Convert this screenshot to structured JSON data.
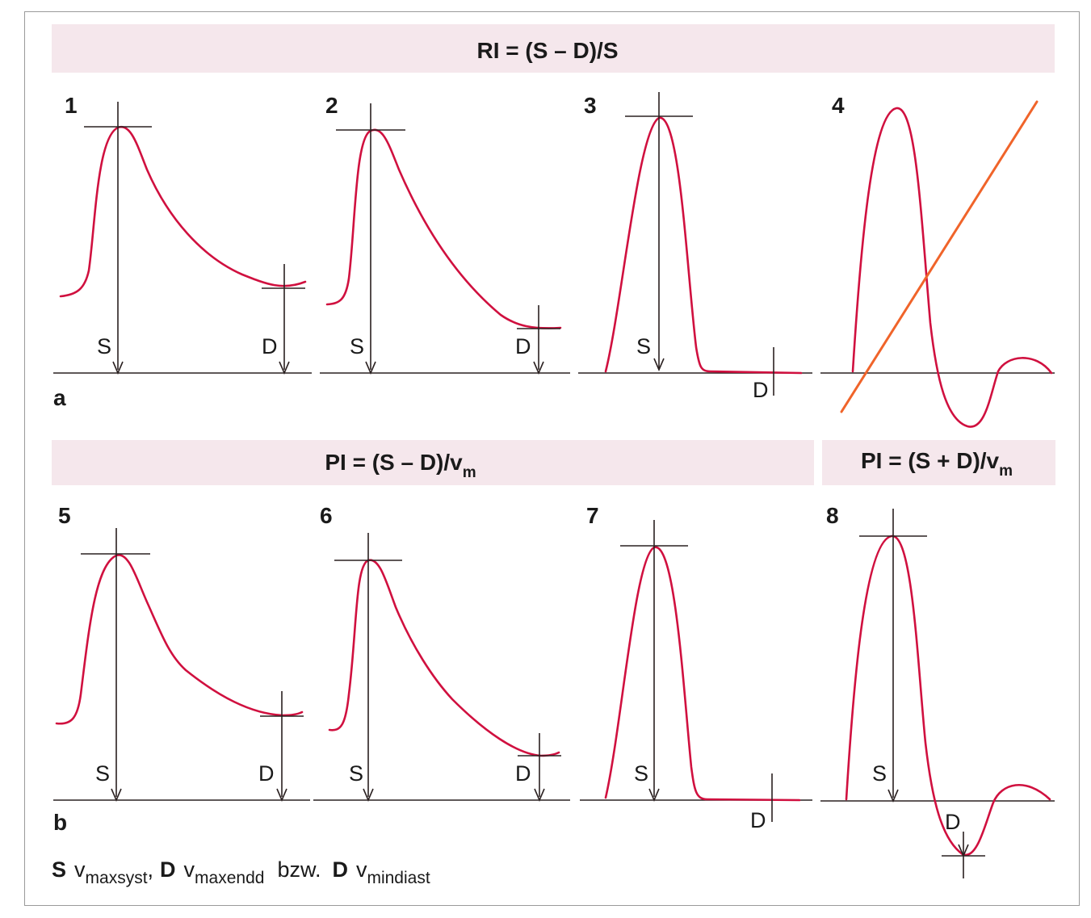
{
  "formulas": {
    "ri": {
      "prefix": "RI = (S – D)/S"
    },
    "pi_diff": {
      "prefix": "PI = (S – D)/v",
      "sub": "m"
    },
    "pi_sum": {
      "prefix": "PI = (S + D)/v",
      "sub": "m"
    }
  },
  "row_labels": {
    "a": "a",
    "b": "b"
  },
  "panels": [
    {
      "number": "1",
      "s_label": "S",
      "d_label": "D"
    },
    {
      "number": "2",
      "s_label": "S",
      "d_label": "D"
    },
    {
      "number": "3",
      "s_label": "S",
      "d_label": "D"
    },
    {
      "number": "4"
    },
    {
      "number": "5",
      "s_label": "S",
      "d_label": "D"
    },
    {
      "number": "6",
      "s_label": "S",
      "d_label": "D"
    },
    {
      "number": "7",
      "s_label": "S",
      "d_label": "D"
    },
    {
      "number": "8",
      "s_label": "S",
      "d_label": "D"
    }
  ],
  "legend": {
    "s_bold": "S",
    "s_v": "v",
    "s_sub": "maxsyst",
    "comma": ",",
    "d_bold": "D",
    "d_v": "v",
    "d_sub": "maxendd",
    "bzw": "bzw.",
    "d2_bold": "D",
    "d2_v": "v",
    "d2_sub": "mindiast"
  },
  "colors": {
    "curve": "#d0103f",
    "orange_line": "#f0642a",
    "band": "#f5e7ec"
  }
}
